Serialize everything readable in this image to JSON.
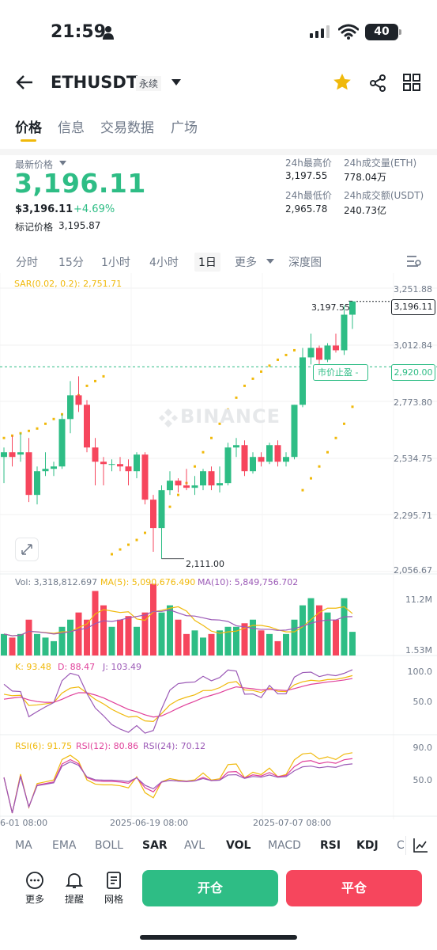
{
  "status_bar": {
    "time": "21:59",
    "battery": "40"
  },
  "header": {
    "title": "ETHUSDT",
    "badge": "永续"
  },
  "tabs": [
    {
      "label": "价格"
    },
    {
      "label": "信息"
    },
    {
      "label": "交易数据"
    },
    {
      "label": "广场"
    }
  ],
  "price": {
    "last_label": "最新价格",
    "last": "3,196.11",
    "usd": "$3,196.11",
    "change": "+4.69%",
    "mark_label": "标记价格",
    "mark": "3,195.87",
    "high_label": "24h最高价",
    "high": "3,197.55",
    "low_label": "24h最低价",
    "low": "2,965.78",
    "vol_eth_label": "24h成交量(ETH)",
    "vol_eth": "778.04万",
    "vol_usdt_label": "24h成交额(USDT)",
    "vol_usdt": "240.73亿"
  },
  "intervals": [
    {
      "label": "分时"
    },
    {
      "label": "15分"
    },
    {
      "label": "1小时"
    },
    {
      "label": "4小时"
    },
    {
      "label": "1日"
    },
    {
      "label": "更多"
    },
    {
      "label": "深度图"
    }
  ],
  "chart": {
    "sar_label": "SAR(0.02, 0.2): 2,751.71",
    "watermark": "BINANCE",
    "y_labels": [
      "3,251.88",
      "3,012.84",
      "2,773.80",
      "2,534.75",
      "2,295.71",
      "2,056.67"
    ],
    "current_price_tag": "3,196.11",
    "tp_label": "市价止盈",
    "tp_price": "2,920.00",
    "high_annot": "3,197.55",
    "low_annot": "2,111.00",
    "vol_label": "Vol: 3,318,812.697",
    "ma5_label": "MA(5): 5,090,676.490",
    "ma10_label": "MA(10): 5,849,756.702",
    "vol_max": "11.2M",
    "vol_min": "1.53M",
    "kdj_k": "K: 93.48",
    "kdj_d": "D: 88.47",
    "kdj_j": "J: 103.49",
    "kdj_hi": "100.0",
    "kdj_mid": "50.0",
    "rsi6": "RSI(6): 91.75",
    "rsi12": "RSI(12): 80.86",
    "rsi24": "RSI(24): 70.12",
    "rsi_hi": "90.0",
    "rsi_mid": "50.0",
    "x_labels": [
      "6-01 08:00",
      "2025-06-19 08:00",
      "2025-07-07 08:00"
    ]
  },
  "chart_data": {
    "type": "candlestick",
    "ylim": [
      2056.67,
      3251.88
    ],
    "candles": [
      {
        "o": 2540,
        "h": 2580,
        "l": 2430,
        "c": 2560
      },
      {
        "o": 2560,
        "h": 2630,
        "l": 2500,
        "c": 2540
      },
      {
        "o": 2550,
        "h": 2640,
        "l": 2520,
        "c": 2560
      },
      {
        "o": 2560,
        "h": 2620,
        "l": 2350,
        "c": 2380
      },
      {
        "o": 2380,
        "h": 2500,
        "l": 2340,
        "c": 2480
      },
      {
        "o": 2480,
        "h": 2560,
        "l": 2460,
        "c": 2490
      },
      {
        "o": 2490,
        "h": 2520,
        "l": 2460,
        "c": 2500
      },
      {
        "o": 2500,
        "h": 2720,
        "l": 2490,
        "c": 2700
      },
      {
        "o": 2700,
        "h": 2860,
        "l": 2640,
        "c": 2800
      },
      {
        "o": 2800,
        "h": 2880,
        "l": 2730,
        "c": 2760
      },
      {
        "o": 2760,
        "h": 2780,
        "l": 2560,
        "c": 2580
      },
      {
        "o": 2580,
        "h": 2620,
        "l": 2420,
        "c": 2520
      },
      {
        "o": 2520,
        "h": 2540,
        "l": 2420,
        "c": 2510
      },
      {
        "o": 2510,
        "h": 2530,
        "l": 2480,
        "c": 2510
      },
      {
        "o": 2510,
        "h": 2540,
        "l": 2480,
        "c": 2500
      },
      {
        "o": 2500,
        "h": 2530,
        "l": 2420,
        "c": 2480
      },
      {
        "o": 2480,
        "h": 2560,
        "l": 2450,
        "c": 2550
      },
      {
        "o": 2550,
        "h": 2560,
        "l": 2340,
        "c": 2360
      },
      {
        "o": 2360,
        "h": 2380,
        "l": 2140,
        "c": 2240
      },
      {
        "o": 2240,
        "h": 2420,
        "l": 2111,
        "c": 2400
      },
      {
        "o": 2400,
        "h": 2480,
        "l": 2380,
        "c": 2440
      },
      {
        "o": 2440,
        "h": 2450,
        "l": 2390,
        "c": 2420
      },
      {
        "o": 2420,
        "h": 2490,
        "l": 2400,
        "c": 2410
      },
      {
        "o": 2410,
        "h": 2460,
        "l": 2380,
        "c": 2420
      },
      {
        "o": 2420,
        "h": 2490,
        "l": 2400,
        "c": 2480
      },
      {
        "o": 2480,
        "h": 2500,
        "l": 2400,
        "c": 2420
      },
      {
        "o": 2420,
        "h": 2500,
        "l": 2390,
        "c": 2430
      },
      {
        "o": 2430,
        "h": 2600,
        "l": 2420,
        "c": 2580
      },
      {
        "o": 2580,
        "h": 2620,
        "l": 2540,
        "c": 2590
      },
      {
        "o": 2590,
        "h": 2610,
        "l": 2460,
        "c": 2480
      },
      {
        "o": 2480,
        "h": 2560,
        "l": 2470,
        "c": 2540
      },
      {
        "o": 2540,
        "h": 2560,
        "l": 2500,
        "c": 2520
      },
      {
        "o": 2520,
        "h": 2600,
        "l": 2510,
        "c": 2590
      },
      {
        "o": 2590,
        "h": 2610,
        "l": 2500,
        "c": 2520
      },
      {
        "o": 2520,
        "h": 2560,
        "l": 2500,
        "c": 2540
      },
      {
        "o": 2540,
        "h": 2760,
        "l": 2530,
        "c": 2760
      },
      {
        "o": 2760,
        "h": 3000,
        "l": 2750,
        "c": 2960
      },
      {
        "o": 2960,
        "h": 3060,
        "l": 2930,
        "c": 3000
      },
      {
        "o": 3000,
        "h": 3010,
        "l": 2910,
        "c": 2950
      },
      {
        "o": 2950,
        "h": 3020,
        "l": 2940,
        "c": 3010
      },
      {
        "o": 3010,
        "h": 3060,
        "l": 2980,
        "c": 2990
      },
      {
        "o": 2990,
        "h": 3180,
        "l": 2970,
        "c": 3140
      },
      {
        "o": 3140,
        "h": 3197.55,
        "l": 3080,
        "c": 3196.11
      }
    ],
    "sar": [
      2620,
      2630,
      2640,
      2650,
      2660,
      2680,
      2700,
      2720,
      2760,
      2800,
      2840,
      2860,
      2880,
      2130,
      2150,
      2170,
      2190,
      2220,
      2250,
      2290,
      2330,
      2380,
      2430,
      2500,
      2560,
      2620,
      2680,
      2740,
      2790,
      2840,
      2870,
      2900,
      2925,
      2950,
      2970,
      2990,
      2400,
      2450,
      2500,
      2560,
      2620,
      2680,
      2751.71
    ],
    "volumes": [
      3,
      2.5,
      3,
      5,
      3,
      2.5,
      2,
      4,
      5,
      6,
      5,
      9,
      7,
      4,
      5,
      5.5,
      4,
      6,
      10,
      6,
      7,
      5,
      3,
      3.5,
      2.5,
      3,
      3.5,
      4,
      4,
      4.5,
      5,
      3.5,
      3,
      2,
      3,
      5,
      7,
      8,
      7,
      6,
      5,
      8,
      3.3
    ],
    "vol_max": 11.2
  },
  "indicators": [
    {
      "label": "MA"
    },
    {
      "label": "EMA"
    },
    {
      "label": "BOLL"
    },
    {
      "label": "SAR"
    },
    {
      "label": "AVL"
    },
    {
      "label": "VOL"
    },
    {
      "label": "MACD"
    },
    {
      "label": "RSI"
    },
    {
      "label": "KDJ"
    },
    {
      "label": "C"
    }
  ],
  "bottom": {
    "more": "更多",
    "alert": "提醒",
    "grid": "网格",
    "open": "开仓",
    "close": "平仓"
  },
  "colors": {
    "up": "#2ebd85",
    "down": "#f6465d",
    "accent": "#f0b90b"
  }
}
